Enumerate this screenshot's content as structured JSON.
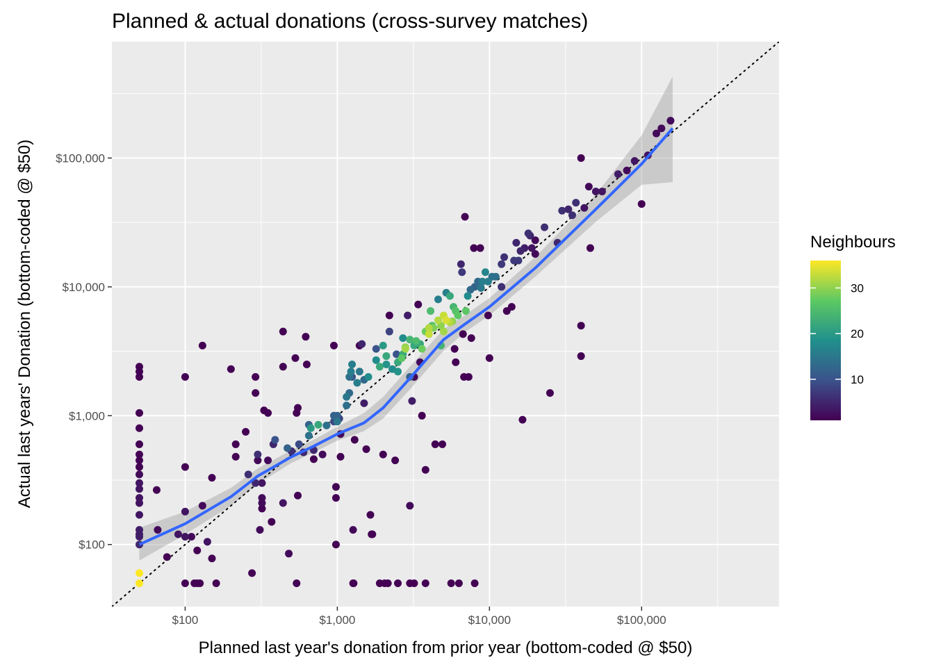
{
  "chart_data": {
    "type": "scatter",
    "title": "Planned & actual donations  (cross-survey matches)",
    "xlabel": "Planned last year's donation from prior year (bottom-coded @ $50)",
    "ylabel": "Actual last years' Donation (bottom-coded @ $50)",
    "x_scale": "log10",
    "y_scale": "log10",
    "xlim": [
      33,
      800000
    ],
    "ylim": [
      33,
      800000
    ],
    "x_ticks": [
      100,
      1000,
      10000,
      100000
    ],
    "x_tick_labels": [
      "$100",
      "$1,000",
      "$10,000",
      "$100,000"
    ],
    "y_ticks": [
      100,
      1000,
      10000,
      100000
    ],
    "y_tick_labels": [
      "$100",
      "$1,000",
      "$10,000",
      "$100,000"
    ],
    "grid": true,
    "reference_line": "y = x (dotted)",
    "smooth_line": {
      "color": "#3366ff",
      "points": [
        [
          50,
          100
        ],
        [
          100,
          145
        ],
        [
          200,
          235
        ],
        [
          300,
          340
        ],
        [
          500,
          480
        ],
        [
          700,
          580
        ],
        [
          1000,
          720
        ],
        [
          1500,
          880
        ],
        [
          2000,
          1150
        ],
        [
          3000,
          1950
        ],
        [
          5000,
          3900
        ],
        [
          7000,
          5200
        ],
        [
          10000,
          7000
        ],
        [
          20000,
          14000
        ],
        [
          50000,
          40000
        ],
        [
          100000,
          90000
        ],
        [
          160000,
          170000
        ]
      ],
      "ribbon_low": [
        [
          50,
          75
        ],
        [
          100,
          120
        ],
        [
          200,
          200
        ],
        [
          300,
          295
        ],
        [
          500,
          430
        ],
        [
          700,
          520
        ],
        [
          1000,
          640
        ],
        [
          1500,
          760
        ],
        [
          2000,
          950
        ],
        [
          3000,
          1600
        ],
        [
          5000,
          3200
        ],
        [
          7000,
          4500
        ],
        [
          10000,
          6000
        ],
        [
          20000,
          12000
        ],
        [
          50000,
          32000
        ],
        [
          100000,
          62000
        ],
        [
          160000,
          65000
        ]
      ],
      "ribbon_high": [
        [
          50,
          135
        ],
        [
          100,
          180
        ],
        [
          200,
          275
        ],
        [
          300,
          390
        ],
        [
          500,
          540
        ],
        [
          700,
          650
        ],
        [
          1000,
          820
        ],
        [
          1500,
          1050
        ],
        [
          2000,
          1400
        ],
        [
          3000,
          2400
        ],
        [
          5000,
          4700
        ],
        [
          7000,
          6100
        ],
        [
          10000,
          8200
        ],
        [
          20000,
          17000
        ],
        [
          50000,
          52000
        ],
        [
          100000,
          150000
        ],
        [
          160000,
          430000
        ]
      ]
    },
    "color_scale": {
      "name": "Neighbours",
      "min": 1,
      "max": 36,
      "ticks": [
        10,
        20,
        30
      ],
      "tick_labels": [
        "10",
        "20",
        "30"
      ],
      "palette": [
        "#440154",
        "#3b528b",
        "#21908c",
        "#5dc963",
        "#fde725"
      ]
    },
    "points": [
      [
        50,
        2400,
        1
      ],
      [
        50,
        2200,
        1
      ],
      [
        50,
        2000,
        1
      ],
      [
        50,
        1050,
        1
      ],
      [
        50,
        800,
        1
      ],
      [
        50,
        600,
        1
      ],
      [
        50,
        500,
        1
      ],
      [
        50,
        450,
        1
      ],
      [
        50,
        400,
        1
      ],
      [
        50,
        350,
        2
      ],
      [
        50,
        300,
        3
      ],
      [
        50,
        270,
        3
      ],
      [
        50,
        230,
        3
      ],
      [
        50,
        210,
        3
      ],
      [
        50,
        170,
        3
      ],
      [
        50,
        130,
        4
      ],
      [
        50,
        120,
        4
      ],
      [
        50,
        115,
        4
      ],
      [
        50,
        100,
        5
      ],
      [
        50,
        60,
        36
      ],
      [
        50,
        50,
        36
      ],
      [
        65,
        265,
        1
      ],
      [
        66,
        130,
        2
      ],
      [
        76,
        80,
        1
      ],
      [
        90,
        120,
        3
      ],
      [
        100,
        115,
        3
      ],
      [
        100,
        2000,
        1
      ],
      [
        100,
        400,
        1
      ],
      [
        100,
        180,
        3
      ],
      [
        100,
        50,
        1
      ],
      [
        110,
        115,
        2
      ],
      [
        115,
        50,
        1
      ],
      [
        120,
        50,
        1
      ],
      [
        120,
        90,
        1
      ],
      [
        125,
        50,
        1
      ],
      [
        130,
        3500,
        1
      ],
      [
        130,
        200,
        2
      ],
      [
        140,
        105,
        3
      ],
      [
        150,
        330,
        1
      ],
      [
        150,
        78,
        1
      ],
      [
        160,
        50,
        1
      ],
      [
        200,
        2300,
        1
      ],
      [
        215,
        600,
        1
      ],
      [
        215,
        480,
        1
      ],
      [
        250,
        750,
        1
      ],
      [
        260,
        350,
        6
      ],
      [
        275,
        60,
        1
      ],
      [
        290,
        300,
        5
      ],
      [
        290,
        1500,
        1
      ],
      [
        290,
        2000,
        1
      ],
      [
        300,
        500,
        6
      ],
      [
        300,
        450,
        2
      ],
      [
        310,
        130,
        2
      ],
      [
        320,
        300,
        3
      ],
      [
        320,
        230,
        2
      ],
      [
        320,
        210,
        2
      ],
      [
        320,
        190,
        1
      ],
      [
        330,
        1100,
        1
      ],
      [
        350,
        1050,
        1
      ],
      [
        350,
        450,
        2
      ],
      [
        370,
        150,
        1
      ],
      [
        380,
        600,
        5
      ],
      [
        390,
        650,
        10
      ],
      [
        440,
        4500,
        1
      ],
      [
        440,
        2400,
        1
      ],
      [
        440,
        210,
        3
      ],
      [
        470,
        560,
        12
      ],
      [
        480,
        85,
        2
      ],
      [
        500,
        530,
        6
      ],
      [
        530,
        2800,
        1
      ],
      [
        540,
        1050,
        1
      ],
      [
        550,
        1150,
        1
      ],
      [
        540,
        50,
        1
      ],
      [
        550,
        240,
        1
      ],
      [
        560,
        600,
        9
      ],
      [
        600,
        520,
        5
      ],
      [
        620,
        4100,
        1
      ],
      [
        630,
        2500,
        1
      ],
      [
        650,
        850,
        12
      ],
      [
        650,
        700,
        14
      ],
      [
        670,
        800,
        20
      ],
      [
        700,
        540,
        5
      ],
      [
        700,
        460,
        1
      ],
      [
        750,
        850,
        22
      ],
      [
        800,
        500,
        2
      ],
      [
        850,
        840,
        14
      ],
      [
        950,
        3500,
        1
      ],
      [
        950,
        1000,
        12
      ],
      [
        950,
        900,
        9
      ],
      [
        980,
        280,
        1
      ],
      [
        980,
        230,
        1
      ],
      [
        980,
        100,
        1
      ],
      [
        1000,
        900,
        15
      ],
      [
        1000,
        1000,
        12
      ],
      [
        1030,
        950,
        8
      ],
      [
        1050,
        720,
        2
      ],
      [
        1050,
        480,
        1
      ],
      [
        1150,
        1400,
        15
      ],
      [
        1150,
        1200,
        14
      ],
      [
        1200,
        2000,
        14
      ],
      [
        1200,
        1500,
        13
      ],
      [
        1230,
        2200,
        16
      ],
      [
        1250,
        2500,
        16
      ],
      [
        1250,
        2000,
        10
      ],
      [
        1270,
        130,
        2
      ],
      [
        1270,
        50,
        1
      ],
      [
        1280,
        50,
        1
      ],
      [
        1300,
        650,
        1
      ],
      [
        1350,
        1800,
        16
      ],
      [
        1400,
        3500,
        1
      ],
      [
        1400,
        2200,
        15
      ],
      [
        1450,
        3600,
        5
      ],
      [
        1500,
        1900,
        13
      ],
      [
        1500,
        1250,
        4
      ],
      [
        1550,
        550,
        1
      ],
      [
        1600,
        2000,
        18
      ],
      [
        1650,
        170,
        1
      ],
      [
        1680,
        120,
        1
      ],
      [
        1700,
        120,
        1
      ],
      [
        1800,
        3300,
        10
      ],
      [
        1800,
        2700,
        18
      ],
      [
        1900,
        2400,
        22
      ],
      [
        1900,
        50,
        1
      ],
      [
        2000,
        3500,
        20
      ],
      [
        2000,
        500,
        1
      ],
      [
        2050,
        50,
        1
      ],
      [
        2100,
        2900,
        22
      ],
      [
        2100,
        2500,
        19
      ],
      [
        2150,
        50,
        1
      ],
      [
        2200,
        4500,
        8
      ],
      [
        2200,
        6000,
        1
      ],
      [
        2300,
        2300,
        18
      ],
      [
        2400,
        450,
        1
      ],
      [
        2450,
        3000,
        10
      ],
      [
        2500,
        2600,
        22
      ],
      [
        2500,
        2200,
        19
      ],
      [
        2500,
        50,
        1
      ],
      [
        2650,
        2800,
        27
      ],
      [
        2700,
        3000,
        22
      ],
      [
        2700,
        4000,
        18
      ],
      [
        2800,
        3300,
        31
      ],
      [
        2800,
        3400,
        30
      ],
      [
        2900,
        6000,
        4
      ],
      [
        3000,
        3900,
        24
      ],
      [
        3000,
        2000,
        12
      ],
      [
        3000,
        200,
        2
      ],
      [
        3000,
        50,
        1
      ],
      [
        3100,
        1300,
        4
      ],
      [
        3200,
        3500,
        22
      ],
      [
        3200,
        2000,
        1
      ],
      [
        3200,
        50,
        1
      ],
      [
        3300,
        3800,
        25
      ],
      [
        3400,
        7300,
        1
      ],
      [
        3500,
        3600,
        22
      ],
      [
        3500,
        2600,
        2
      ],
      [
        3600,
        3300,
        28
      ],
      [
        3600,
        1000,
        1
      ],
      [
        3800,
        380,
        1
      ],
      [
        3800,
        50,
        1
      ],
      [
        3800,
        4500,
        28
      ],
      [
        4000,
        4300,
        33
      ],
      [
        4000,
        4800,
        32
      ],
      [
        4100,
        6500,
        25
      ],
      [
        4200,
        5000,
        26
      ],
      [
        4300,
        4800,
        29
      ],
      [
        4400,
        600,
        1
      ],
      [
        4600,
        5500,
        32
      ],
      [
        4600,
        8000,
        16
      ],
      [
        4800,
        3500,
        24
      ],
      [
        4800,
        5000,
        30
      ],
      [
        4900,
        600,
        1
      ],
      [
        5000,
        6000,
        33
      ],
      [
        5000,
        4500,
        31
      ],
      [
        5200,
        5500,
        34
      ],
      [
        5200,
        9000,
        16
      ],
      [
        5500,
        8500,
        22
      ],
      [
        5500,
        5300,
        32
      ],
      [
        5600,
        50,
        1
      ],
      [
        5700,
        5400,
        30
      ],
      [
        5800,
        7000,
        24
      ],
      [
        5900,
        3300,
        1
      ],
      [
        6000,
        2600,
        1
      ],
      [
        6000,
        6500,
        26
      ],
      [
        6200,
        6000,
        27
      ],
      [
        6300,
        50,
        1
      ],
      [
        6500,
        15000,
        5
      ],
      [
        6600,
        13000,
        7
      ],
      [
        6700,
        4300,
        1
      ],
      [
        6800,
        2000,
        1
      ],
      [
        6900,
        35000,
        1
      ],
      [
        7000,
        6500,
        27
      ],
      [
        7200,
        8500,
        18
      ],
      [
        7300,
        2000,
        1
      ],
      [
        7500,
        9500,
        13
      ],
      [
        7600,
        4000,
        1
      ],
      [
        7900,
        20000,
        1
      ],
      [
        8000,
        50,
        1
      ],
      [
        8000,
        10000,
        12
      ],
      [
        8400,
        11000,
        13
      ],
      [
        8700,
        20000,
        1
      ],
      [
        8800,
        9800,
        15
      ],
      [
        9000,
        11000,
        16
      ],
      [
        9400,
        13000,
        17
      ],
      [
        9800,
        11000,
        16
      ],
      [
        9800,
        6000,
        1
      ],
      [
        10000,
        2800,
        1
      ],
      [
        10400,
        12000,
        14
      ],
      [
        11000,
        12000,
        14
      ],
      [
        12000,
        15000,
        7
      ],
      [
        12000,
        10000,
        6
      ],
      [
        12500,
        17000,
        6
      ],
      [
        13000,
        6500,
        1
      ],
      [
        14000,
        7000,
        1
      ],
      [
        14500,
        16000,
        7
      ],
      [
        15000,
        22000,
        5
      ],
      [
        15500,
        16000,
        7
      ],
      [
        16000,
        19000,
        5
      ],
      [
        16500,
        930,
        1
      ],
      [
        17000,
        20000,
        4
      ],
      [
        18000,
        26000,
        6
      ],
      [
        18500,
        25000,
        5
      ],
      [
        19000,
        20000,
        3
      ],
      [
        20000,
        18000,
        2
      ],
      [
        20000,
        23000,
        2
      ],
      [
        23000,
        29000,
        6
      ],
      [
        25000,
        1500,
        1
      ],
      [
        28000,
        22000,
        5
      ],
      [
        30000,
        39000,
        6
      ],
      [
        33000,
        40000,
        5
      ],
      [
        35000,
        36000,
        6
      ],
      [
        37000,
        45000,
        6
      ],
      [
        40000,
        100000,
        1
      ],
      [
        40000,
        5000,
        1
      ],
      [
        40000,
        2900,
        1
      ],
      [
        42000,
        41000,
        3
      ],
      [
        45000,
        60000,
        2
      ],
      [
        46000,
        20000,
        1
      ],
      [
        50000,
        55000,
        3
      ],
      [
        55000,
        55000,
        3
      ],
      [
        70000,
        75000,
        4
      ],
      [
        80000,
        80000,
        2
      ],
      [
        90000,
        95000,
        3
      ],
      [
        100000,
        44000,
        1
      ],
      [
        110000,
        105000,
        3
      ],
      [
        125000,
        155000,
        2
      ],
      [
        135000,
        170000,
        2
      ],
      [
        155000,
        195000,
        2
      ]
    ]
  }
}
